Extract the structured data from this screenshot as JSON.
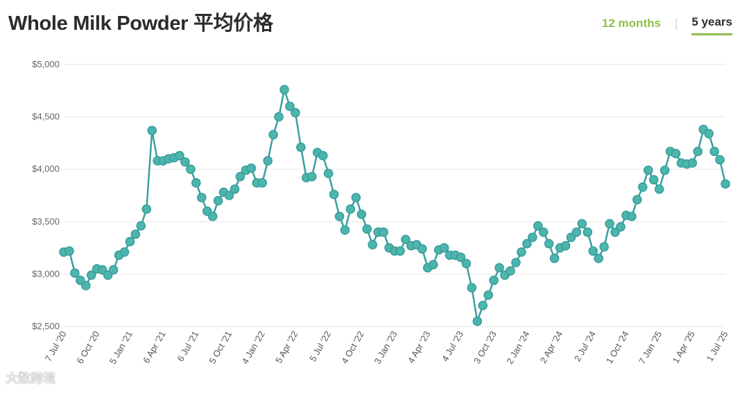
{
  "header": {
    "title": "Whole Milk Powder 平均价格",
    "range_options": [
      "12 months",
      "5 years"
    ],
    "selected_range": "5 years"
  },
  "colors": {
    "line": "#3a9e9e",
    "marker_fill": "#4db6ac",
    "accent": "#8cc04b",
    "grid": "#e6e6e6"
  },
  "watermark": {
    "text": "大数跨境"
  },
  "chart_data": {
    "type": "line",
    "title": "Whole Milk Powder 平均价格",
    "xlabel": "",
    "ylabel": "",
    "ylim": [
      2500,
      5000
    ],
    "yticks": [
      2500,
      3000,
      3500,
      4000,
      4500,
      5000
    ],
    "ytick_labels": [
      "$2,500",
      "$3,000",
      "$3,500",
      "$4,000",
      "$4,500",
      "$5,000"
    ],
    "xtick_labels": [
      "7 Jul '20",
      "6 Oct '20",
      "5 Jan '21",
      "6 Apr '21",
      "6 Jul '21",
      "5 Oct '21",
      "4 Jan '22",
      "5 Apr '22",
      "5 Jul '22",
      "4 Oct '22",
      "3 Jan '23",
      "4 Apr '23",
      "4 Jul '23",
      "3 Oct '23",
      "2 Jan '24",
      "2 Apr '24",
      "2 Jul '24",
      "1 Oct '24",
      "7 Jan '25",
      "1 Apr '25",
      "1 Jul '25"
    ],
    "grid": true,
    "series": [
      {
        "values": [
          3210,
          3220,
          3010,
          2940,
          2890,
          2990,
          3050,
          3040,
          2990,
          3040,
          3180,
          3210,
          3310,
          3380,
          3460,
          3620,
          4370,
          4080,
          4080,
          4100,
          4110,
          4130,
          4070,
          4000,
          3870,
          3730,
          3600,
          3550,
          3700,
          3780,
          3750,
          3810,
          3930,
          3990,
          4010,
          3870,
          3870,
          4080,
          4330,
          4500,
          4760,
          4600,
          4540,
          4210,
          3920,
          3930,
          4160,
          4130,
          3960,
          3760,
          3550,
          3420,
          3620,
          3730,
          3570,
          3430,
          3280,
          3400,
          3400,
          3250,
          3220,
          3220,
          3330,
          3270,
          3280,
          3240,
          3060,
          3090,
          3230,
          3250,
          3180,
          3180,
          3160,
          3100,
          2870,
          2550,
          2700,
          2800,
          2940,
          3060,
          2990,
          3030,
          3110,
          3210,
          3290,
          3350,
          3460,
          3400,
          3290,
          3150,
          3250,
          3270,
          3350,
          3400,
          3480,
          3400,
          3220,
          3150,
          3260,
          3480,
          3400,
          3450,
          3560,
          3550,
          3710,
          3830,
          3990,
          3900,
          3810,
          3990,
          4170,
          4150,
          4060,
          4050,
          4060,
          4170,
          4380,
          4340,
          4170,
          4090,
          3860
        ]
      }
    ]
  }
}
